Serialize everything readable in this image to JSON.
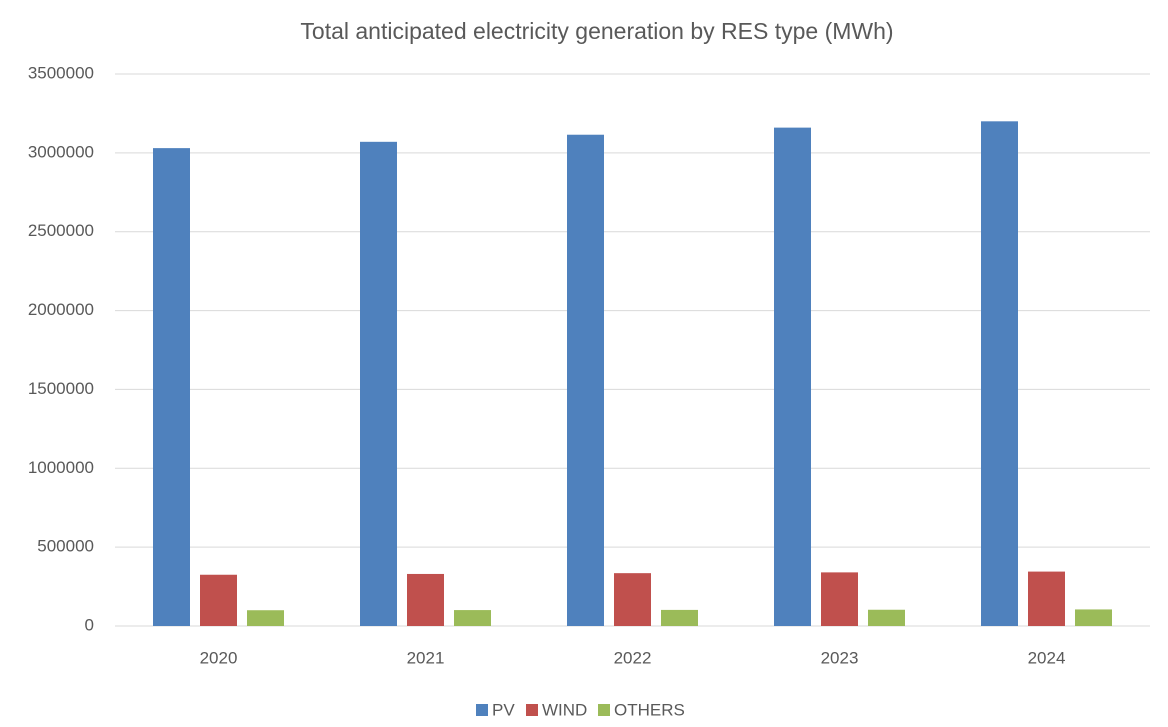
{
  "chart_data": {
    "type": "bar",
    "title": "Total anticipated electricity generation by RES type (MWh)",
    "categories": [
      "2020",
      "2021",
      "2022",
      "2023",
      "2024"
    ],
    "series": [
      {
        "name": "PV",
        "color": "#4f81bd",
        "values": [
          3030000,
          3070000,
          3115000,
          3160000,
          3200000
        ]
      },
      {
        "name": "WIND",
        "color": "#c0504d",
        "values": [
          325000,
          330000,
          335000,
          340000,
          345000
        ]
      },
      {
        "name": "OTHERS",
        "color": "#9bbb59",
        "values": [
          100000,
          101000,
          102000,
          103000,
          105000
        ]
      }
    ],
    "ylim": [
      0,
      3500000
    ],
    "yticks": [
      0,
      500000,
      1000000,
      1500000,
      2000000,
      2500000,
      3000000,
      3500000
    ],
    "grid": true,
    "legend": "bottom"
  }
}
